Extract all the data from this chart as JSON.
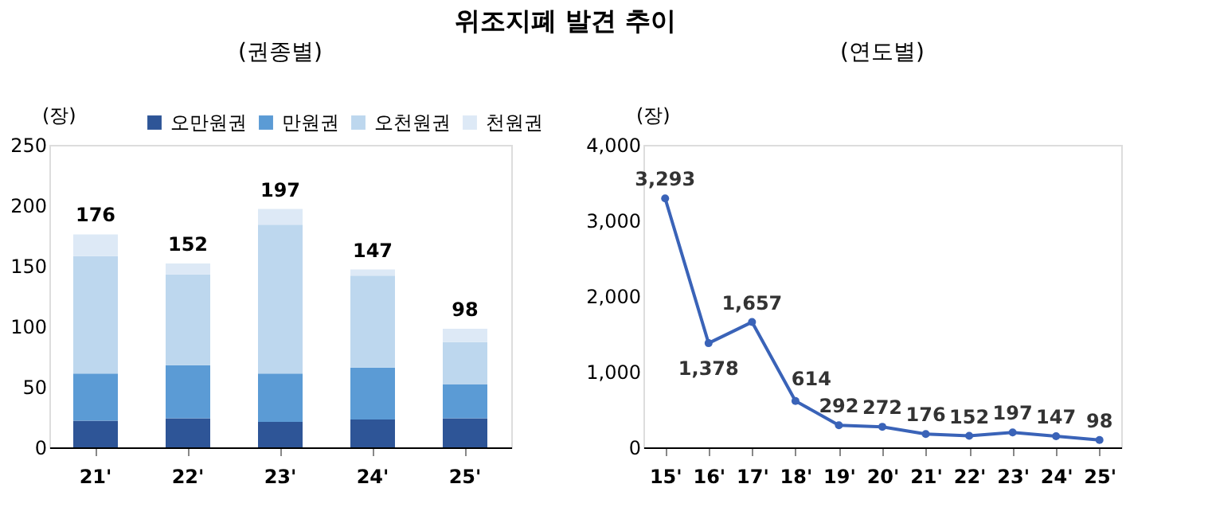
{
  "chart_data": [
    {
      "type": "bar",
      "title": "위조지폐 발견 추이",
      "subtitle": "(권종별)",
      "ylabel": "(장)",
      "stacked": true,
      "categories": [
        "21'",
        "22'",
        "23'",
        "24'",
        "25'"
      ],
      "series": [
        {
          "name": "오만원권",
          "color": "#2e5597",
          "values": [
            22,
            24,
            21,
            23,
            24
          ]
        },
        {
          "name": "만원권",
          "color": "#5b9bd5",
          "values": [
            39,
            44,
            40,
            43,
            28
          ]
        },
        {
          "name": "오천원권",
          "color": "#bdd7ee",
          "values": [
            97,
            75,
            123,
            76,
            35
          ]
        },
        {
          "name": "천원권",
          "color": "#dde9f6",
          "values": [
            18,
            9,
            13,
            5,
            11
          ]
        }
      ],
      "totals": [
        "176",
        "152",
        "197",
        "147",
        "98"
      ],
      "ylim": [
        0,
        250
      ],
      "yticks": [
        0,
        50,
        100,
        150,
        200,
        250
      ],
      "legend": "top",
      "grid": false
    },
    {
      "type": "line",
      "subtitle": "(연도별)",
      "ylabel": "(장)",
      "categories": [
        "15'",
        "16'",
        "17'",
        "18'",
        "19'",
        "20'",
        "21'",
        "22'",
        "23'",
        "24'",
        "25'"
      ],
      "series": [
        {
          "color": "#3a63b8",
          "values": [
            3293,
            1378,
            1657,
            614,
            292,
            272,
            176,
            152,
            197,
            147,
            98
          ],
          "value_labels": [
            "3,293",
            "1,378",
            "1,657",
            "614",
            "292",
            "272",
            "176",
            "152",
            "197",
            "147",
            "98"
          ]
        }
      ],
      "ylim": [
        0,
        4000
      ],
      "yticks": [
        0,
        {
          "value": 1000,
          "label": "1,000"
        },
        {
          "value": 2000,
          "label": "2,000"
        },
        {
          "value": 3000,
          "label": "3,000"
        },
        {
          "value": 4000,
          "label": "4,000"
        }
      ],
      "marker": "circle",
      "line_style": "solid",
      "grid": false
    }
  ]
}
